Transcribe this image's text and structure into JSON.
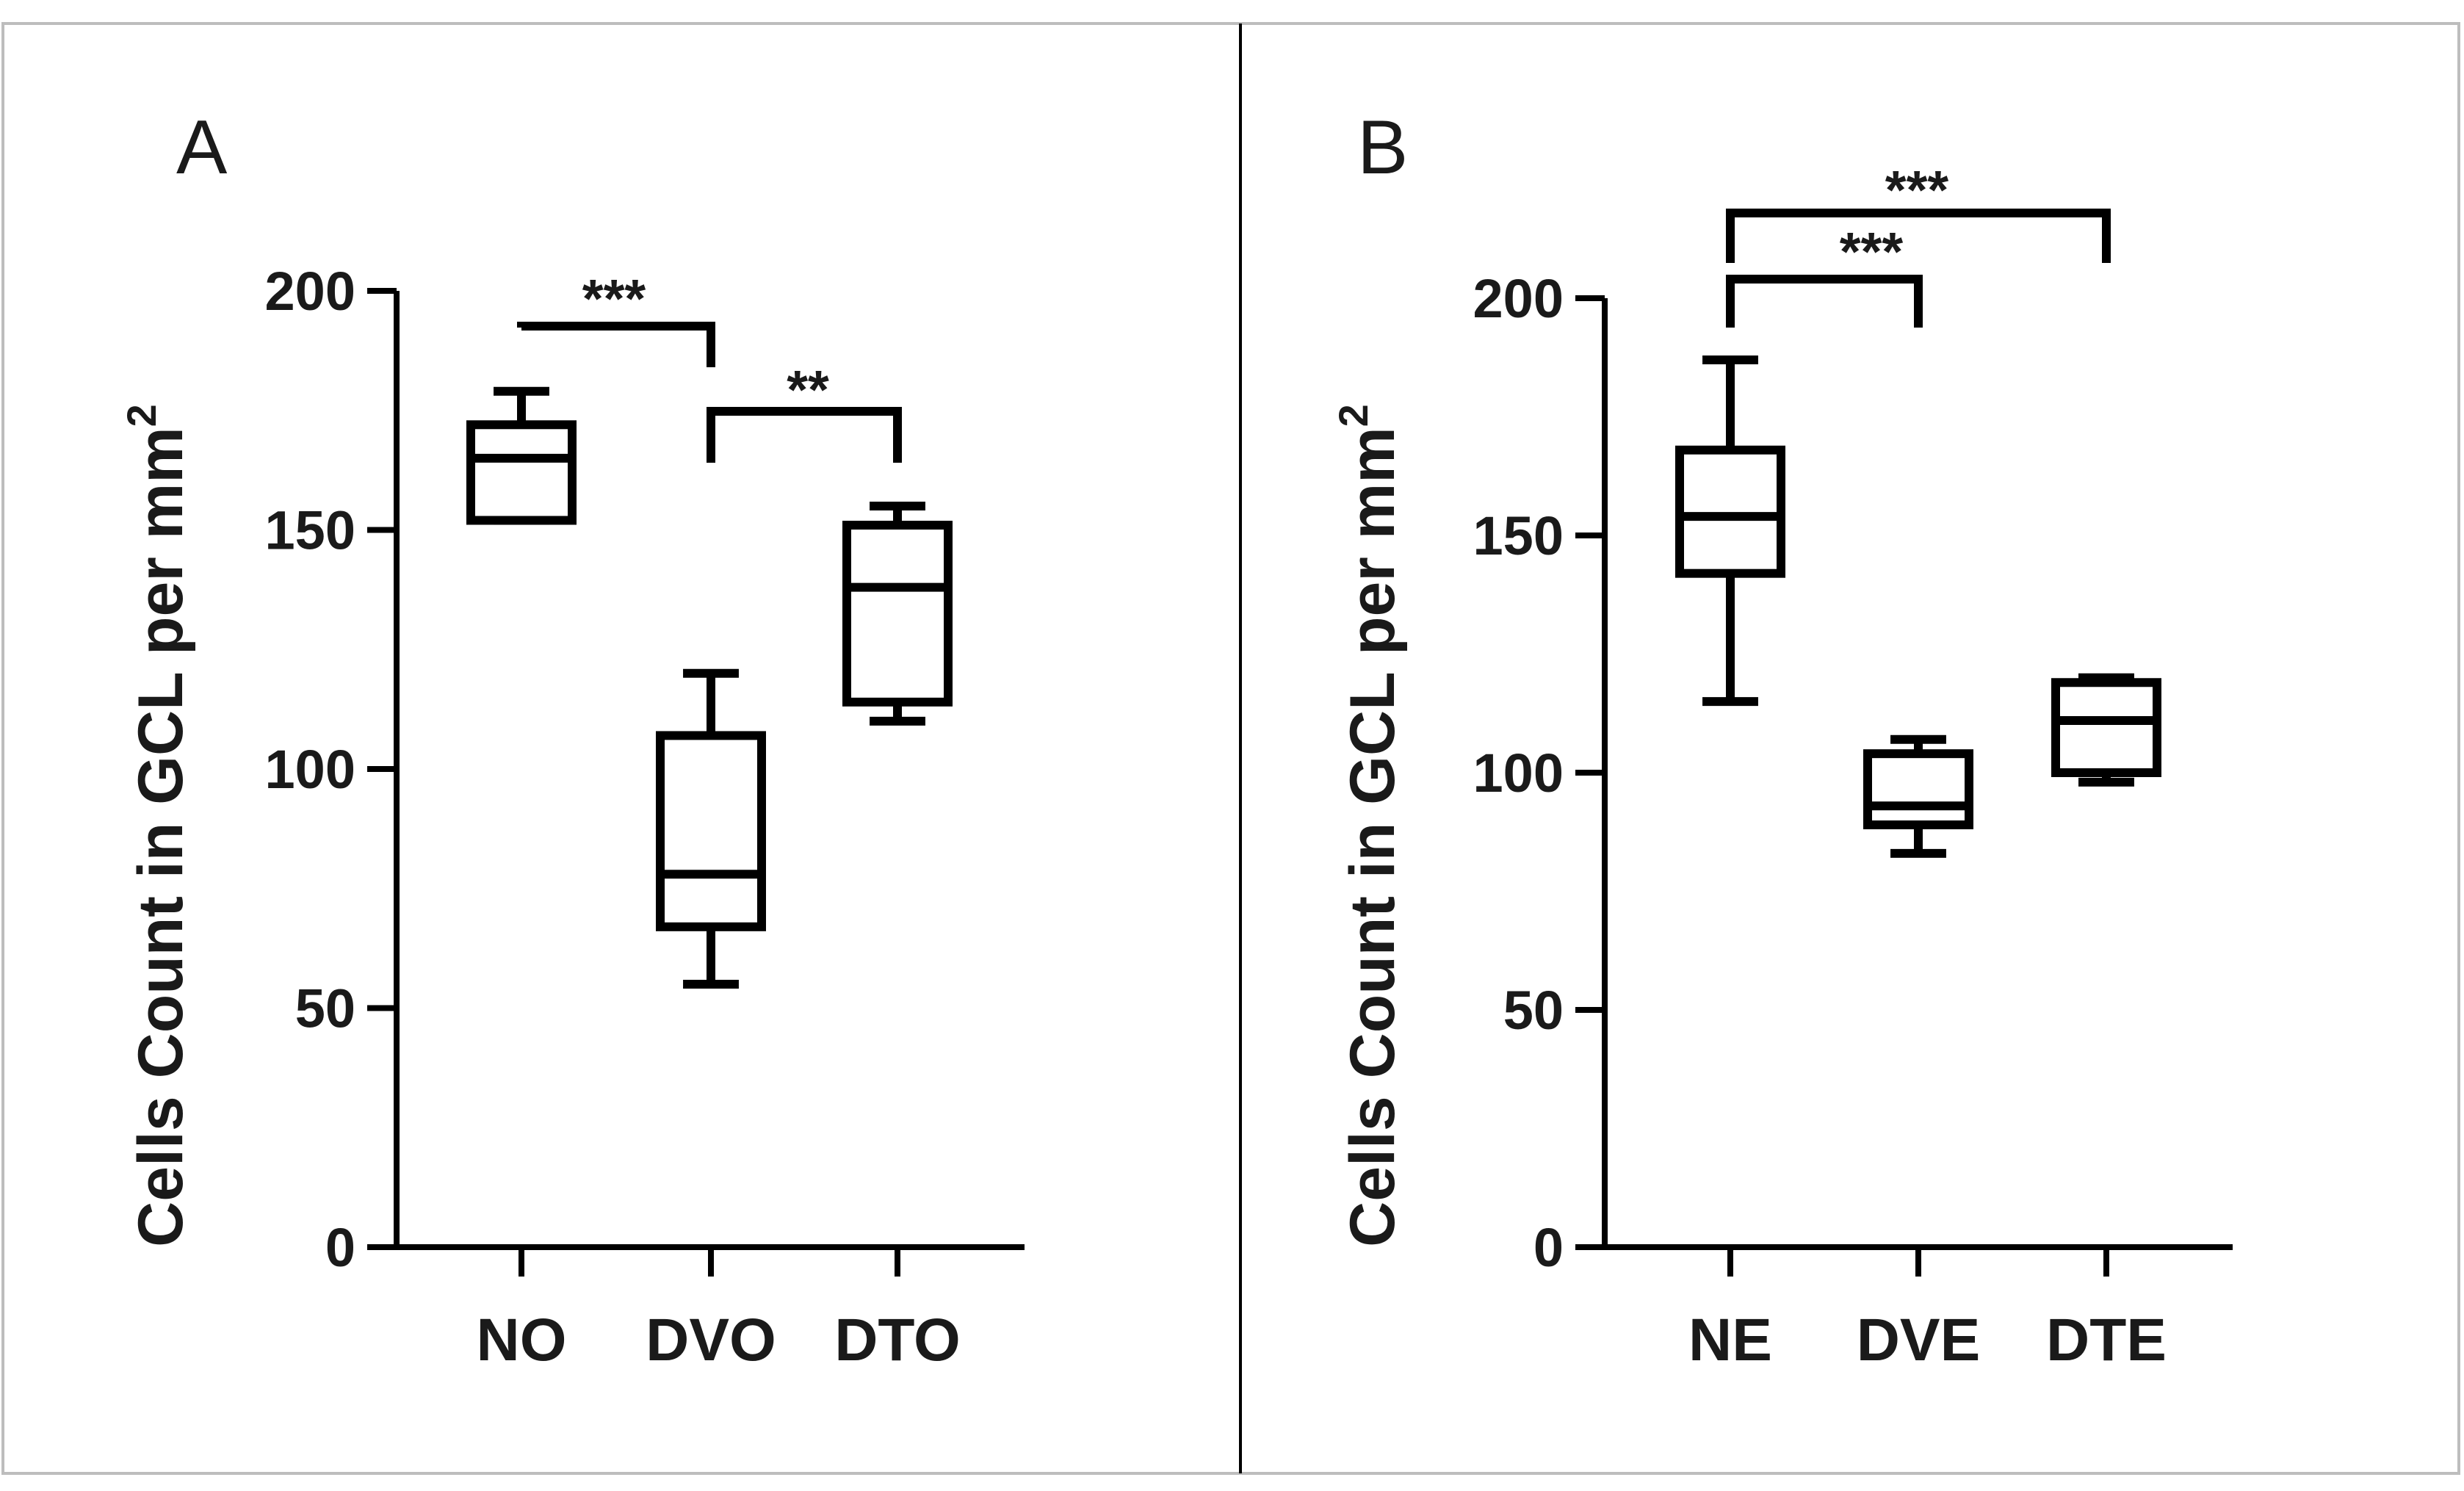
{
  "chart_data": [
    {
      "type": "box",
      "panel_label": "A",
      "ylabel_main": "Cells Count in GCL per mm",
      "ylabel_sup": "2",
      "ylim": [
        0,
        200
      ],
      "yticks": [
        "0",
        "50",
        "100",
        "150",
        "200"
      ],
      "categories": [
        "NO",
        "DVO",
        "DTO"
      ],
      "boxes": [
        {
          "name": "NO",
          "min": 152,
          "q1": 152,
          "median": 165,
          "q3": 172,
          "max": 179
        },
        {
          "name": "DVO",
          "min": 55,
          "q1": 67,
          "median": 78,
          "q3": 107,
          "max": 120
        },
        {
          "name": "DTO",
          "min": 110,
          "q1": 114,
          "median": 138,
          "q3": 151,
          "max": 155
        }
      ],
      "significance": [
        {
          "from": "NO",
          "to": "DVO",
          "label": "***"
        },
        {
          "from": "DVO",
          "to": "DTO",
          "label": "**"
        }
      ]
    },
    {
      "type": "box",
      "panel_label": "B",
      "ylabel_main": "Cells Count in GCL per mm",
      "ylabel_sup": "2",
      "ylim": [
        0,
        200
      ],
      "yticks": [
        "0",
        "50",
        "100",
        "150",
        "200"
      ],
      "categories": [
        "NE",
        "DVE",
        "DTE"
      ],
      "boxes": [
        {
          "name": "NE",
          "min": 115,
          "q1": 142,
          "median": 154,
          "q3": 168,
          "max": 187
        },
        {
          "name": "DVE",
          "min": 83,
          "q1": 89,
          "median": 93,
          "q3": 104,
          "max": 107
        },
        {
          "name": "DTE",
          "min": 98,
          "q1": 100,
          "median": 111,
          "q3": 119,
          "max": 120
        }
      ],
      "significance": [
        {
          "from": "NE",
          "to": "DVE",
          "label": "***"
        },
        {
          "from": "NE",
          "to": "DTE",
          "label": "***"
        }
      ]
    }
  ]
}
